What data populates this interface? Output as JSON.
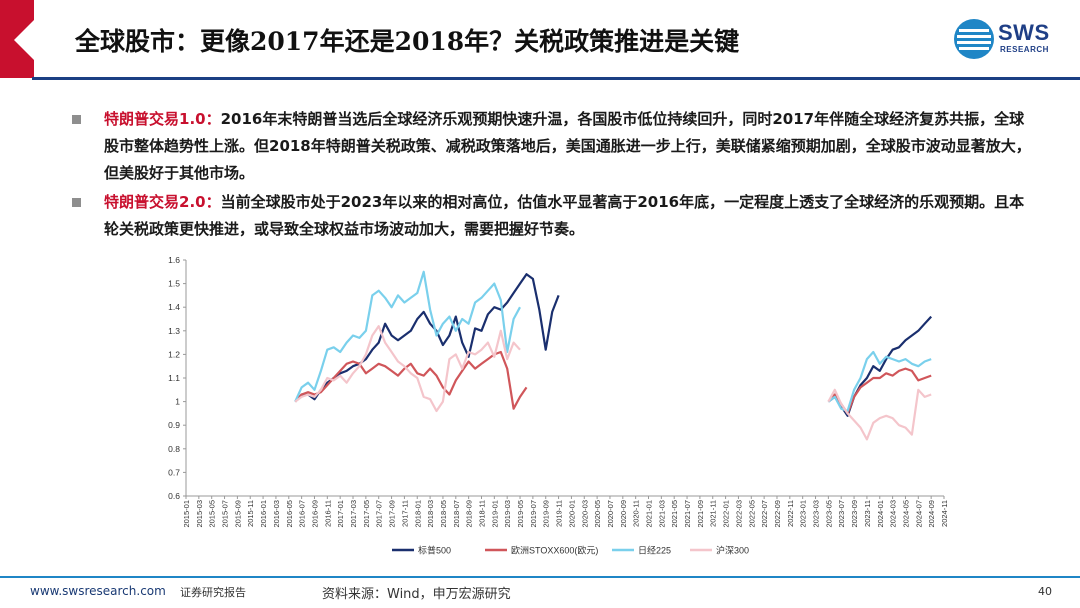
{
  "header": {
    "title": "全球股市：更像2017年还是2018年？关税政策推进是关键",
    "accent_color": "#c8102e",
    "line_color": "#1b3f83"
  },
  "logo": {
    "name": "SWS",
    "sub": "RESEARCH"
  },
  "bullets": [
    {
      "highlight": "特朗普交易1.0：",
      "text": "2016年末特朗普当选后全球经济乐观预期快速升温，各国股市低位持续回升，同时2017年伴随全球经济复苏共振，全球股市整体趋势性上涨。但2018年特朗普关税政策、减税政策落地后，美国通胀进一步上行，美联储紧缩预期加剧，全球股市波动显著放大，但美股好于其他市场。"
    },
    {
      "highlight": "特朗普交易2.0：",
      "text": "当前全球股市处于2023年以来的相对高位，估值水平显著高于2016年底，一定程度上透支了全球经济的乐观预期。且本轮关税政策更快推进，或导致全球权益市场波动加大，需要把握好节奏。"
    }
  ],
  "chart_data": {
    "type": "line",
    "ylim": [
      0.6,
      1.6
    ],
    "yticks": [
      "0.6",
      "0.7",
      "0.8",
      "0.9",
      "1",
      "1.1",
      "1.2",
      "1.3",
      "1.4",
      "1.5",
      "1.6"
    ],
    "xticks": [
      "2015-01",
      "2015-03",
      "2015-05",
      "2015-07",
      "2015-09",
      "2015-11",
      "2016-01",
      "2016-03",
      "2016-05",
      "2016-07",
      "2016-09",
      "2016-11",
      "2017-01",
      "2017-03",
      "2017-05",
      "2017-07",
      "2017-09",
      "2017-11",
      "2018-01",
      "2018-03",
      "2018-05",
      "2018-07",
      "2018-09",
      "2018-11",
      "2019-01",
      "2019-03",
      "2019-05",
      "2019-07",
      "2019-09",
      "2019-11",
      "2020-01",
      "2020-03",
      "2020-05",
      "2020-07",
      "2020-09",
      "2020-11",
      "2021-01",
      "2021-03",
      "2021-05",
      "2021-07",
      "2021-09",
      "2021-11",
      "2022-01",
      "2022-03",
      "2022-05",
      "2022-07",
      "2022-09",
      "2022-11",
      "2023-01",
      "2023-03",
      "2023-05",
      "2023-07",
      "2023-09",
      "2023-11",
      "2024-01",
      "2024-03",
      "2024-05",
      "2024-07",
      "2024-09",
      "2024-11"
    ],
    "series": [
      {
        "name": "标普500",
        "color": "#1a2f6e",
        "segments": [
          {
            "start": "2016-06",
            "values": [
              1.0,
              1.03,
              1.03,
              1.01,
              1.05,
              1.08,
              1.1,
              1.12,
              1.13,
              1.15,
              1.16,
              1.18,
              1.22,
              1.25,
              1.33,
              1.28,
              1.26,
              1.28,
              1.3,
              1.35,
              1.38,
              1.33,
              1.3,
              1.24,
              1.28,
              1.36,
              1.25,
              1.19,
              1.31,
              1.3,
              1.37,
              1.4,
              1.39,
              1.42,
              1.46,
              1.5,
              1.54,
              1.52,
              1.39,
              1.22,
              1.38,
              1.45
            ]
          },
          {
            "start": "2023-05",
            "values": [
              1.0,
              1.02,
              0.98,
              0.94,
              1.02,
              1.07,
              1.1,
              1.15,
              1.13,
              1.18,
              1.22,
              1.23,
              1.26,
              1.28,
              1.3,
              1.33,
              1.36
            ]
          }
        ]
      },
      {
        "name": "欧洲STOXX600(欧元)",
        "color": "#d0565a",
        "segments": [
          {
            "start": "2016-06",
            "values": [
              1.0,
              1.03,
              1.04,
              1.03,
              1.04,
              1.07,
              1.1,
              1.13,
              1.16,
              1.17,
              1.16,
              1.12,
              1.14,
              1.16,
              1.15,
              1.13,
              1.11,
              1.14,
              1.16,
              1.12,
              1.11,
              1.14,
              1.11,
              1.06,
              1.03,
              1.09,
              1.13,
              1.17,
              1.14,
              1.16,
              1.18,
              1.2,
              1.21,
              1.14,
              0.97,
              1.02,
              1.06
            ]
          },
          {
            "start": "2023-05",
            "values": [
              1.0,
              1.03,
              0.99,
              0.95,
              1.02,
              1.06,
              1.08,
              1.1,
              1.1,
              1.12,
              1.11,
              1.13,
              1.14,
              1.13,
              1.09,
              1.1,
              1.11
            ]
          }
        ]
      },
      {
        "name": "日经225",
        "color": "#7ad0ec",
        "segments": [
          {
            "start": "2016-06",
            "values": [
              1.0,
              1.06,
              1.08,
              1.05,
              1.13,
              1.22,
              1.23,
              1.21,
              1.25,
              1.28,
              1.27,
              1.3,
              1.45,
              1.47,
              1.44,
              1.4,
              1.45,
              1.42,
              1.44,
              1.46,
              1.55,
              1.39,
              1.28,
              1.33,
              1.36,
              1.3,
              1.35,
              1.33,
              1.42,
              1.44,
              1.47,
              1.5,
              1.43,
              1.21,
              1.35,
              1.4
            ]
          },
          {
            "start": "2023-05",
            "values": [
              1.0,
              1.02,
              0.97,
              0.96,
              1.05,
              1.1,
              1.18,
              1.21,
              1.16,
              1.19,
              1.18,
              1.17,
              1.18,
              1.16,
              1.15,
              1.17,
              1.18
            ]
          }
        ]
      },
      {
        "name": "沪深300",
        "color": "#f4c5cb",
        "segments": [
          {
            "start": "2016-06",
            "values": [
              1.0,
              1.02,
              1.03,
              1.02,
              1.05,
              1.1,
              1.09,
              1.11,
              1.08,
              1.12,
              1.15,
              1.2,
              1.28,
              1.32,
              1.25,
              1.21,
              1.17,
              1.15,
              1.12,
              1.1,
              1.02,
              1.01,
              0.96,
              1.0,
              1.18,
              1.2,
              1.14,
              1.21,
              1.2,
              1.22,
              1.25,
              1.19,
              1.3,
              1.18,
              1.25,
              1.22
            ]
          },
          {
            "start": "2023-05",
            "values": [
              1.0,
              1.05,
              0.99,
              0.95,
              0.92,
              0.89,
              0.84,
              0.91,
              0.93,
              0.94,
              0.93,
              0.9,
              0.89,
              0.86,
              1.05,
              1.02,
              1.03
            ]
          }
        ]
      }
    ],
    "legend_position": "bottom"
  },
  "footer": {
    "url": "www.swsresearch.com",
    "report": "证券研究报告",
    "source": "资料来源：Wind，申万宏源研究",
    "page": "40"
  }
}
